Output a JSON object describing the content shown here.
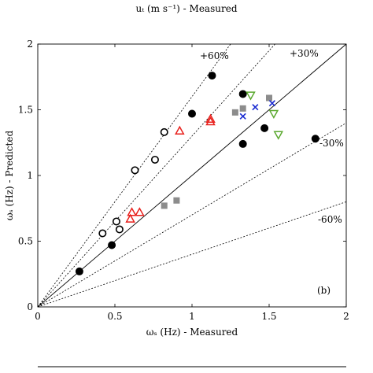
{
  "top_label": "uₜ (m s⁻¹) - Measured",
  "chart_data": {
    "type": "scatter",
    "title": "",
    "xlabel": "ωₛ (Hz) - Measured",
    "ylabel": "ωₛ (Hz) - Predicted",
    "xlim": [
      0,
      2
    ],
    "ylim": [
      0,
      2
    ],
    "xticks": [
      0,
      0.5,
      1,
      1.5,
      2
    ],
    "yticks": [
      0,
      0.5,
      1,
      1.5,
      2
    ],
    "xtick_labels": [
      "0",
      "0.5",
      "1",
      "1.5",
      "2"
    ],
    "ytick_labels": [
      "0",
      "0.5",
      "1",
      "1.5",
      "2"
    ],
    "panel_label": "(b)",
    "grid": false,
    "reference_lines": [
      {
        "label": "+60%",
        "slope": 1.6,
        "style": "dotted"
      },
      {
        "label": "+30%",
        "slope": 1.3,
        "style": "dotted"
      },
      {
        "label": "",
        "slope": 1.0,
        "style": "solid"
      },
      {
        "label": "-30%",
        "slope": 0.7,
        "style": "dotted"
      },
      {
        "label": "-60%",
        "slope": 0.4,
        "style": "dotted"
      }
    ],
    "series": [
      {
        "marker": "filled-circle",
        "color": "#000000",
        "points": [
          [
            0.27,
            0.27
          ],
          [
            0.48,
            0.47
          ],
          [
            1.0,
            1.47
          ],
          [
            1.13,
            1.76
          ],
          [
            1.33,
            1.62
          ],
          [
            1.33,
            1.24
          ],
          [
            1.47,
            1.36
          ],
          [
            1.8,
            1.28
          ]
        ]
      },
      {
        "marker": "open-circle",
        "color": "#000000",
        "points": [
          [
            0.42,
            0.56
          ],
          [
            0.51,
            0.65
          ],
          [
            0.53,
            0.59
          ],
          [
            0.63,
            1.04
          ],
          [
            0.76,
            1.12
          ],
          [
            0.82,
            1.33
          ]
        ]
      },
      {
        "marker": "open-triangle-up",
        "color": "#e8201c",
        "points": [
          [
            0.6,
            0.67
          ],
          [
            0.61,
            0.72
          ],
          [
            0.66,
            0.72
          ],
          [
            0.92,
            1.34
          ],
          [
            1.12,
            1.41
          ],
          [
            1.12,
            1.43
          ]
        ]
      },
      {
        "marker": "filled-square",
        "color": "#8c8c8c",
        "points": [
          [
            0.82,
            0.77
          ],
          [
            0.9,
            0.81
          ],
          [
            1.28,
            1.48
          ],
          [
            1.33,
            1.51
          ],
          [
            1.5,
            1.59
          ]
        ]
      },
      {
        "marker": "cross",
        "color": "#1a2bd1",
        "points": [
          [
            1.33,
            1.45
          ],
          [
            1.41,
            1.52
          ],
          [
            1.52,
            1.55
          ]
        ]
      },
      {
        "marker": "open-triangle-down",
        "color": "#5aa82e",
        "points": [
          [
            1.38,
            1.61
          ],
          [
            1.53,
            1.47
          ],
          [
            1.56,
            1.31
          ]
        ]
      }
    ]
  }
}
